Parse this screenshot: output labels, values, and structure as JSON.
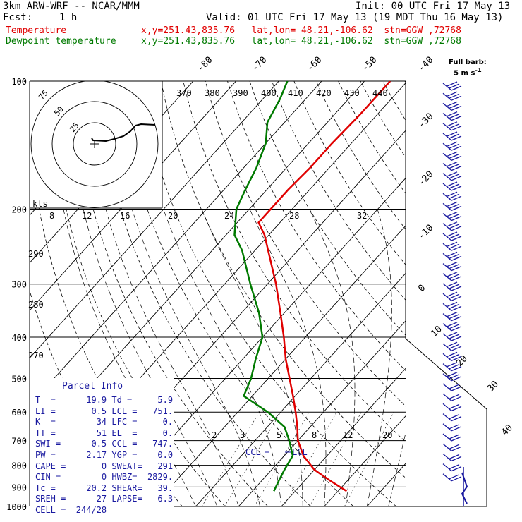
{
  "header": {
    "model": "3km ARW-WRF -- NCAR/MMM",
    "init": "Init: 00 UTC Fri 17 May 13",
    "fcst_label": "Fcst:",
    "fcst_value": "1 h",
    "valid": "Valid: 01 UTC Fri 17 May 13 (19 MDT Thu 16 May 13)",
    "temp_label": "Temperature",
    "dew_label": "Dewpoint temperature",
    "location": "x,y=251.43,835.76   lat,lon= 48.21,-106.62  stn=GGW ,72768"
  },
  "colors": {
    "temperature": "#e00000",
    "dewpoint": "#007a00",
    "parcel_text": "#1a1aa0",
    "barbs": "#1a1aa0"
  },
  "chart_data": {
    "type": "line",
    "subtype": "skew-t log-p sounding",
    "y_axis": {
      "label": "Pressure (hPa)",
      "scale": "log",
      "ticks": [
        100,
        200,
        300,
        400,
        500,
        600,
        700,
        800,
        900,
        1000
      ]
    },
    "isotherm_labels": [
      -80,
      -70,
      -60,
      -50,
      -40,
      -30,
      -20,
      -10,
      0,
      10,
      20,
      30,
      40
    ],
    "theta_labels": [
      370,
      380,
      390,
      400,
      410,
      420,
      430,
      440,
      290,
      280,
      270
    ],
    "mixing_ratio_top_labels": [
      8,
      12,
      16,
      20,
      24,
      28,
      32
    ],
    "mixing_ratio_low_labels": [
      2,
      3,
      5,
      8,
      12,
      20
    ],
    "series": [
      {
        "name": "Temperature",
        "pressure": [
          920,
          870,
          820,
          760,
          700,
          650,
          600,
          550,
          500,
          450,
          400,
          350,
          300,
          260,
          230,
          215,
          200,
          180,
          160,
          140,
          120,
          100
        ],
        "temperature_c": [
          22,
          16,
          10,
          4.5,
          0,
          -3,
          -6.5,
          -10.5,
          -15,
          -20,
          -25,
          -31,
          -38,
          -45,
          -51,
          -55,
          -55,
          -55,
          -54.5,
          -54.5,
          -54,
          -54
        ]
      },
      {
        "name": "Dewpoint temperature",
        "pressure": [
          920,
          870,
          820,
          760,
          700,
          650,
          600,
          550,
          500,
          450,
          400,
          350,
          300,
          250,
          230,
          200,
          180,
          160,
          140,
          125,
          110,
          100
        ],
        "dewpoint_c": [
          5,
          4,
          3,
          2,
          -2,
          -6,
          -13,
          -22,
          -24,
          -27,
          -30,
          -36,
          -44,
          -53,
          -58,
          -63,
          -65,
          -67,
          -70,
          -74,
          -76,
          -78
        ]
      }
    ],
    "markers": {
      "CCL": "CCL",
      "LCL": "LCL"
    },
    "hodograph": {
      "rings_kts": [
        25,
        50,
        75
      ],
      "unit_label": "kts"
    },
    "wind_barb_legend": {
      "title": "Full barb:",
      "value": "5 m s",
      "exponent": "-1"
    }
  },
  "parcel_info": {
    "title": "Parcel Info",
    "rows": [
      [
        "T  =",
        "19.9",
        "Td =",
        "5.9"
      ],
      [
        "LI =",
        "0.5",
        "LCL =",
        "751."
      ],
      [
        "K  =",
        "34",
        "LFC =",
        "0."
      ],
      [
        "TT =",
        "51",
        "EL  =",
        "0."
      ],
      [
        "SWI =",
        "0.5",
        "CCL =",
        "747."
      ],
      [
        "PW =",
        "2.17",
        "YGP =",
        "0.0"
      ],
      [
        "CAPE =",
        "0",
        "SWEAT=",
        "291"
      ],
      [
        "CIN =",
        "0",
        "HWBZ=",
        "2829."
      ],
      [
        "Tc =",
        "20.2",
        "SHEAR=",
        "39."
      ],
      [
        "SREH =",
        "27",
        "LAPSE=",
        "6.3"
      ],
      [
        "CELL =",
        "244/28",
        "",
        ""
      ]
    ]
  }
}
